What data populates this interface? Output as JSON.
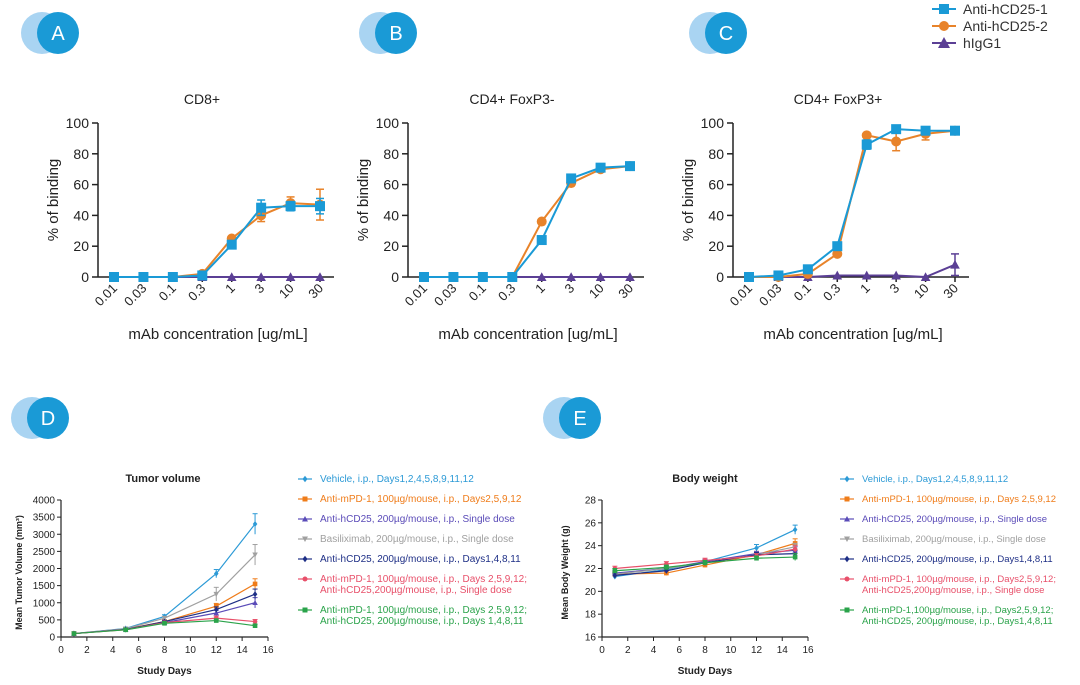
{
  "colors": {
    "blue": "#1a9ad6",
    "orange": "#e8832a",
    "purple": "#5b3f95",
    "badge_light": "#a9d4f2",
    "badge_dark": "#1a9ad6"
  },
  "badges": [
    "A",
    "B",
    "C",
    "D",
    "E"
  ],
  "legend_top": [
    {
      "name": "Anti-hCD25-1",
      "marker": "square",
      "color": "#1a9ad6"
    },
    {
      "name": "Anti-hCD25-2",
      "marker": "circle",
      "color": "#e8832a"
    },
    {
      "name": "hIgG1",
      "marker": "triangle",
      "color": "#5b3f95"
    }
  ],
  "legend_bottom": [
    {
      "name": "Vehicle, i.p., Days1,2,4,5,8,9,11,12",
      "color": "#2c9ad6",
      "marker": "diamond"
    },
    {
      "name": "Anti-mPD-1, 100µg/mouse, i.p., Days2,5,9,12",
      "color": "#ef7c1a",
      "marker": "square"
    },
    {
      "name": "Anti-hCD25, 200µg/mouse, i.p., Single dose",
      "color": "#5a4bb8",
      "marker": "triangle"
    },
    {
      "name": "Basiliximab, 200µg/mouse, i.p., Single dose",
      "color": "#a0a0a0",
      "marker": "triangle-down"
    },
    {
      "name": "Anti-hCD25, 200µg/mouse, i.p., Days1,4,8,11",
      "color": "#1e2f86",
      "marker": "diamond"
    },
    {
      "name": "Anti-mPD-1, 100µg/mouse, i.p., Days 2,5,9,12;\nAnti-hCD25,200µg/mouse, i.p., Single dose",
      "color": "#e8506a",
      "marker": "circle"
    },
    {
      "name": "Anti-mPD-1, 100µg/mouse, i.p., Days 2,5,9,12;\nAnti-hCD25, 200µg/mouse, i.p., Days 1,4,8,11",
      "color": "#2aa34a",
      "marker": "square"
    }
  ],
  "legend_bottom_E": [
    {
      "name": "Vehicle, i.p., Days1,2,4,5,8,9,11,12"
    },
    {
      "name": "Anti-mPD-1, 100µg/mouse, i.p., Days 2,5,9,12"
    },
    {
      "name": "Anti-hCD25, 200µg/mouse, i.p., Single dose"
    },
    {
      "name": "Basiliximab, 200µg/mouse, i.p., Single dose"
    },
    {
      "name": "Anti-hCD25, 200µg/mouse, i.p., Days1,4,8,11"
    },
    {
      "name": "Anti-mPD-1, 100µg/mouse, i.p., Days2,5,9,12;\nAnti-hCD25,200µg/mouse, i.p., Single dose"
    },
    {
      "name": "Anti-mPD-1,100µg/mouse, i.p., Days2,5,9,12;\nAnti-hCD25, 200µg/mouse, i.p., Days1,4,8,11"
    }
  ],
  "chart_data": [
    {
      "panel": "A",
      "type": "line",
      "title": "CD8+",
      "xlabel": "mAb concentration [ug/mL]",
      "ylabel": "% of binding",
      "x": [
        "0.01",
        "0.03",
        "0.1",
        "0.3",
        "1",
        "3",
        "10",
        "30"
      ],
      "ylim": [
        0,
        100
      ],
      "yticks": [
        0,
        20,
        40,
        60,
        80,
        100
      ],
      "series": [
        {
          "name": "Anti-hCD25-1",
          "values": [
            0,
            0,
            0,
            1,
            21,
            45,
            46,
            46
          ],
          "err": [
            0,
            0,
            0,
            0,
            2,
            5,
            3,
            5
          ]
        },
        {
          "name": "Anti-hCD25-2",
          "values": [
            0,
            0,
            0,
            2,
            25,
            40,
            48,
            47
          ],
          "err": [
            0,
            0,
            0,
            0,
            1,
            4,
            4,
            10
          ]
        },
        {
          "name": "hIgG1",
          "values": [
            0,
            0,
            0,
            0,
            0,
            0,
            0,
            0
          ],
          "err": [
            0,
            0,
            0,
            0,
            0,
            0,
            0,
            0
          ]
        }
      ]
    },
    {
      "panel": "B",
      "type": "line",
      "title": "CD4+ FoxP3-",
      "xlabel": "mAb concentration [ug/mL]",
      "ylabel": "% of binding",
      "x": [
        "0.01",
        "0.03",
        "0.1",
        "0.3",
        "1",
        "3",
        "10",
        "30"
      ],
      "ylim": [
        0,
        100
      ],
      "yticks": [
        0,
        20,
        40,
        60,
        80,
        100
      ],
      "series": [
        {
          "name": "Anti-hCD25-1",
          "values": [
            0,
            0,
            0,
            0,
            24,
            64,
            71,
            72
          ],
          "err": [
            0,
            0,
            0,
            0,
            0,
            0,
            0,
            0
          ]
        },
        {
          "name": "Anti-hCD25-2",
          "values": [
            0,
            0,
            0,
            0,
            36,
            61,
            70,
            72
          ],
          "err": [
            0,
            0,
            0,
            0,
            0,
            0,
            0,
            0
          ]
        },
        {
          "name": "hIgG1",
          "values": [
            0,
            0,
            0,
            0,
            0,
            0,
            0,
            0
          ],
          "err": [
            0,
            0,
            0,
            0,
            0,
            0,
            0,
            0
          ]
        }
      ]
    },
    {
      "panel": "C",
      "type": "line",
      "title": "CD4+ FoxP3+",
      "xlabel": "mAb concentration [ug/mL]",
      "ylabel": "% of binding",
      "x": [
        "0.01",
        "0.03",
        "0.1",
        "0.3",
        "1",
        "3",
        "10",
        "30"
      ],
      "ylim": [
        0,
        100
      ],
      "yticks": [
        0,
        20,
        40,
        60,
        80,
        100
      ],
      "series": [
        {
          "name": "Anti-hCD25-1",
          "values": [
            0,
            1,
            5,
            20,
            86,
            96,
            95,
            95
          ],
          "err": [
            0,
            0,
            0,
            2,
            3,
            1,
            1,
            1
          ]
        },
        {
          "name": "Anti-hCD25-2",
          "values": [
            0,
            0,
            2,
            15,
            92,
            88,
            93,
            95
          ],
          "err": [
            0,
            0,
            0,
            0,
            1,
            6,
            4,
            1
          ]
        },
        {
          "name": "hIgG1",
          "values": [
            0,
            0,
            0,
            1,
            1,
            1,
            0,
            8
          ],
          "err": [
            0,
            0,
            0,
            0,
            0,
            0,
            0,
            7
          ]
        }
      ]
    },
    {
      "panel": "D",
      "type": "line",
      "title": "Tumor volume",
      "xlabel": "Study Days",
      "ylabel": "Mean Tumor Volume (mm³)",
      "x": [
        1,
        5,
        8,
        12,
        15
      ],
      "xlim": [
        0,
        16
      ],
      "xticks": [
        0,
        2,
        4,
        6,
        8,
        10,
        12,
        14,
        16
      ],
      "ylim": [
        0,
        4000
      ],
      "yticks": [
        0,
        500,
        1000,
        1500,
        2000,
        2500,
        3000,
        3500,
        4000
      ],
      "series": [
        {
          "name": "Vehicle",
          "values": [
            100,
            250,
            600,
            1850,
            3300
          ],
          "err": [
            0,
            30,
            50,
            120,
            300
          ]
        },
        {
          "name": "Anti-mPD-1",
          "values": [
            100,
            230,
            450,
            900,
            1550
          ],
          "err": [
            0,
            20,
            40,
            80,
            150
          ]
        },
        {
          "name": "Anti-hCD25 single",
          "values": [
            100,
            220,
            420,
            700,
            1000
          ],
          "err": [
            0,
            20,
            40,
            80,
            150
          ]
        },
        {
          "name": "Basiliximab",
          "values": [
            100,
            240,
            550,
            1250,
            2400
          ],
          "err": [
            0,
            20,
            50,
            200,
            300
          ]
        },
        {
          "name": "Anti-hCD25 Days1,4,8,11",
          "values": [
            100,
            220,
            450,
            800,
            1250
          ],
          "err": [
            0,
            20,
            40,
            80,
            150
          ]
        },
        {
          "name": "Combo single",
          "values": [
            100,
            210,
            420,
            550,
            450
          ],
          "err": [
            0,
            20,
            40,
            60,
            60
          ]
        },
        {
          "name": "Combo Days1,4,8,11",
          "values": [
            100,
            210,
            400,
            480,
            330
          ],
          "err": [
            0,
            20,
            30,
            40,
            40
          ]
        }
      ]
    },
    {
      "panel": "E",
      "type": "line",
      "title": "Body weight",
      "xlabel": "Study Days",
      "ylabel": "Mean Body Weight (g)",
      "x": [
        1,
        5,
        8,
        12,
        15
      ],
      "xlim": [
        0,
        16
      ],
      "xticks": [
        0,
        2,
        4,
        6,
        8,
        10,
        12,
        14,
        16
      ],
      "ylim": [
        16,
        28
      ],
      "yticks": [
        16,
        18,
        20,
        22,
        24,
        26,
        28
      ],
      "series": [
        {
          "name": "Vehicle",
          "values": [
            21.3,
            21.9,
            22.6,
            23.8,
            25.4
          ],
          "err": [
            0.2,
            0.2,
            0.2,
            0.3,
            0.4
          ]
        },
        {
          "name": "Anti-mPD-1",
          "values": [
            21.5,
            21.6,
            22.3,
            23.2,
            24.2
          ],
          "err": [
            0.2,
            0.2,
            0.2,
            0.3,
            0.4
          ]
        },
        {
          "name": "Anti-hCD25 single",
          "values": [
            21.6,
            22.0,
            22.6,
            23.3,
            23.6
          ],
          "err": [
            0.2,
            0.2,
            0.2,
            0.2,
            0.3
          ]
        },
        {
          "name": "Basiliximab",
          "values": [
            21.5,
            22.0,
            22.5,
            23.2,
            23.9
          ],
          "err": [
            0.2,
            0.2,
            0.2,
            0.2,
            0.3
          ]
        },
        {
          "name": "Anti-hCD25 Days1,4,8,11",
          "values": [
            21.4,
            21.8,
            22.5,
            23.2,
            23.3
          ],
          "err": [
            0.2,
            0.2,
            0.2,
            0.2,
            0.3
          ]
        },
        {
          "name": "Combo single",
          "values": [
            22.0,
            22.4,
            22.7,
            23.1,
            23.7
          ],
          "err": [
            0.2,
            0.2,
            0.2,
            0.2,
            0.3
          ]
        },
        {
          "name": "Combo Days1,4,8,11",
          "values": [
            21.8,
            22.1,
            22.5,
            22.9,
            23.0
          ],
          "err": [
            0.2,
            0.2,
            0.2,
            0.2,
            0.3
          ]
        }
      ]
    }
  ]
}
